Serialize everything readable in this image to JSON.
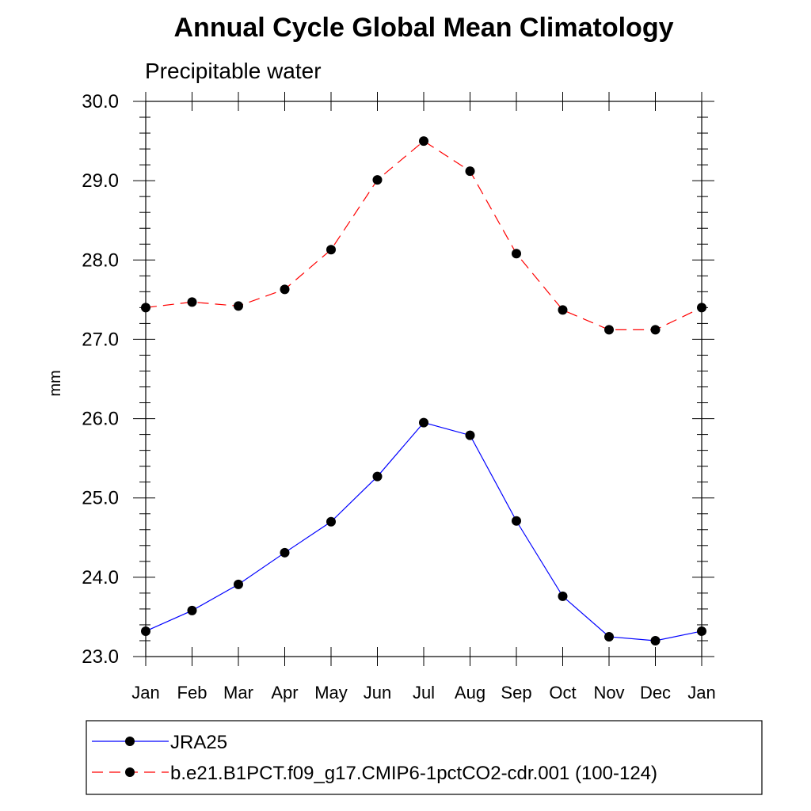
{
  "chart_data": {
    "type": "line",
    "title": "Annual Cycle Global Mean Climatology",
    "subtitle": "Precipitable water",
    "xlabel": "",
    "ylabel": "mm",
    "categories": [
      "Jan",
      "Feb",
      "Mar",
      "Apr",
      "May",
      "Jun",
      "Jul",
      "Aug",
      "Sep",
      "Oct",
      "Nov",
      "Dec",
      "Jan"
    ],
    "ylim": [
      23.0,
      30.0
    ],
    "yticks": [
      "23.0",
      "24.0",
      "25.0",
      "26.0",
      "27.0",
      "28.0",
      "29.0",
      "30.0"
    ],
    "grid": false,
    "legend_position": "bottom",
    "series": [
      {
        "name": "JRA25",
        "color": "#0000ff",
        "line_style": "solid",
        "marker": "filled-circle",
        "values": [
          23.32,
          23.58,
          23.91,
          24.31,
          24.7,
          25.27,
          25.95,
          25.79,
          24.71,
          23.76,
          23.25,
          23.2,
          23.32
        ]
      },
      {
        "name": "b.e21.B1PCT.f09_g17.CMIP6-1pctCO2-cdr.001 (100-124)",
        "color": "#ff0000",
        "line_style": "dashed",
        "marker": "filled-circle",
        "values": [
          27.4,
          27.47,
          27.42,
          27.63,
          28.13,
          29.01,
          29.5,
          29.12,
          28.08,
          27.37,
          27.12,
          27.12,
          27.4
        ]
      }
    ]
  }
}
